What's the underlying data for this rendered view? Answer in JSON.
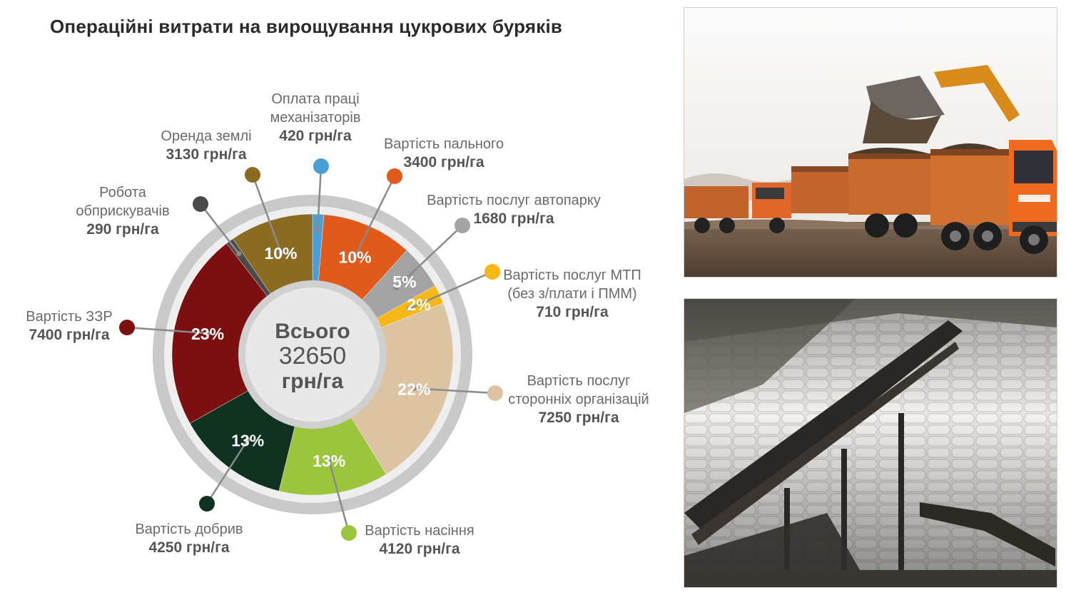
{
  "title": "Операційні витрати на вирощування цукрових буряків",
  "center": {
    "line1": "Всього",
    "line2": "32650",
    "line3": "грн/га"
  },
  "chart_data": {
    "type": "pie",
    "title": "Операційні витрати на вирощування цукрових буряків",
    "total": 32650,
    "unit": "грн/га",
    "slices": [
      {
        "key": "labor",
        "name": [
          "Оплата праці",
          "механізаторів"
        ],
        "value": 420,
        "value_label": "420 грн/га",
        "pct": "",
        "color": "#4a9fd8"
      },
      {
        "key": "fuel",
        "name": [
          "Вартість пального"
        ],
        "value": 3400,
        "value_label": "3400 грн/га",
        "pct": "10%",
        "color": "#e05a1c"
      },
      {
        "key": "fleet",
        "name": [
          "Вартість послуг автопарку"
        ],
        "value": 1680,
        "value_label": "1680 грн/га",
        "pct": "5%",
        "color": "#a3a3a3"
      },
      {
        "key": "mtp",
        "name": [
          "Вартість послуг МТП",
          "(без з/плати і ПММ)"
        ],
        "value": 710,
        "value_label": "710 грн/га",
        "pct": "2%",
        "color": "#f6b817"
      },
      {
        "key": "thirdp",
        "name": [
          "Вартість послуг",
          "сторонніх організацій"
        ],
        "value": 7250,
        "value_label": "7250 грн/га",
        "pct": "22%",
        "color": "#dcc4a2"
      },
      {
        "key": "seeds",
        "name": [
          "Вартість насіння"
        ],
        "value": 4120,
        "value_label": "4120 грн/га",
        "pct": "13%",
        "color": "#9bc53d"
      },
      {
        "key": "fert",
        "name": [
          "Вартість добрив"
        ],
        "value": 4250,
        "value_label": "4250 грн/га",
        "pct": "13%",
        "color": "#0f3320"
      },
      {
        "key": "zzr",
        "name": [
          "Вартість ЗЗР"
        ],
        "value": 7400,
        "value_label": "7400 грн/га",
        "pct": "23%",
        "color": "#7c0f0f"
      },
      {
        "key": "sprayers",
        "name": [
          "Робота",
          "обприскувачів"
        ],
        "value": 290,
        "value_label": "290 грн/га",
        "pct": "",
        "color": "#4a4a4a"
      },
      {
        "key": "land",
        "name": [
          "Оренда землі"
        ],
        "value": 3130,
        "value_label": "3130 грн/га",
        "pct": "10%",
        "color": "#8b6a22"
      }
    ]
  }
}
